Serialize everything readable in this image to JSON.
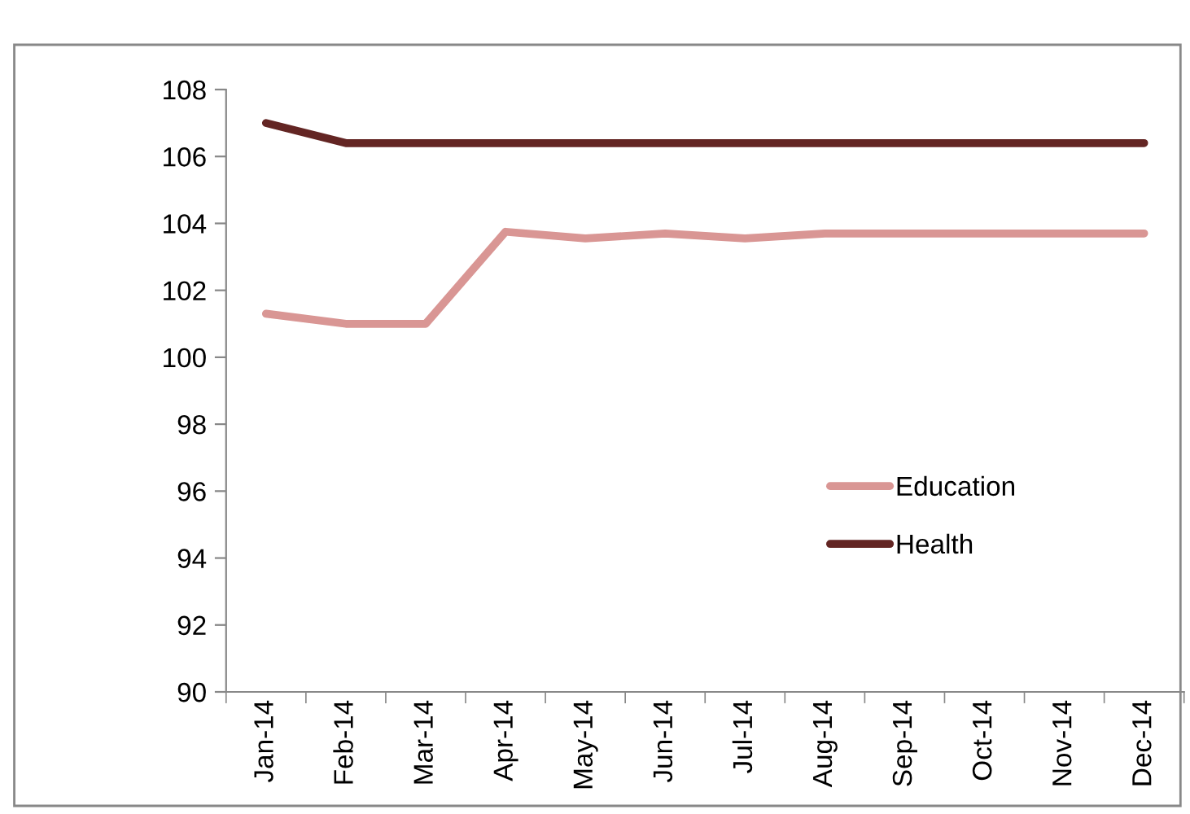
{
  "chart_data": {
    "type": "line",
    "categories": [
      "Jan-14",
      "Feb-14",
      "Mar-14",
      "Apr-14",
      "May-14",
      "Jun-14",
      "Jul-14",
      "Aug-14",
      "Sep-14",
      "Oct-14",
      "Nov-14",
      "Dec-14"
    ],
    "series": [
      {
        "name": "Education",
        "color": "#d99694",
        "values": [
          101.3,
          101.0,
          101.0,
          103.75,
          103.55,
          103.7,
          103.55,
          103.7,
          103.7,
          103.7,
          103.7,
          103.7
        ]
      },
      {
        "name": "Health",
        "color": "#632523",
        "values": [
          107.0,
          106.4,
          106.4,
          106.4,
          106.4,
          106.4,
          106.4,
          106.4,
          106.4,
          106.4,
          106.4,
          106.4
        ]
      }
    ],
    "ylim": [
      90,
      108
    ],
    "yticks": [
      90,
      92,
      94,
      96,
      98,
      100,
      102,
      104,
      106,
      108
    ],
    "grid": false,
    "legend": "lower right",
    "marker": "none",
    "line_style": "solid"
  }
}
